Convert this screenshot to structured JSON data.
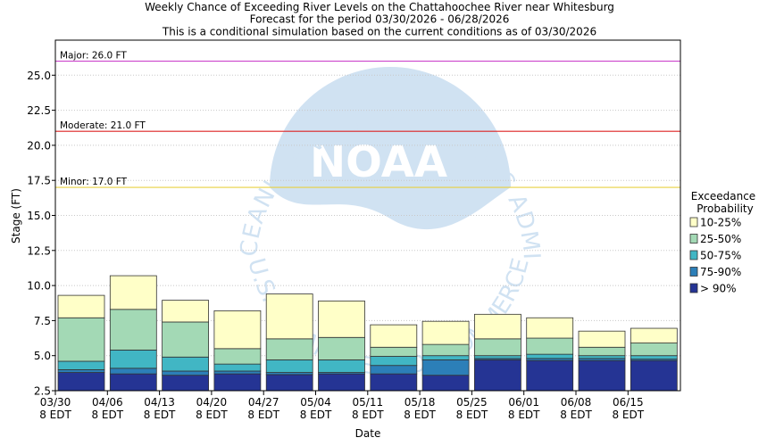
{
  "chart_data": {
    "type": "bar",
    "title_lines": [
      "Weekly Chance of Exceeding River Levels on the Chattahoochee River near Whitesburg",
      "Forecast for the period 03/30/2026 - 06/28/2026",
      "This is a conditional simulation based on the current conditions as of 03/30/2026"
    ],
    "xlabel": "Date",
    "ylabel": "Stage (FT)",
    "ylim": [
      2.5,
      27.5
    ],
    "yticks": [
      "2.5",
      "5.0",
      "7.5",
      "10.0",
      "12.5",
      "15.0",
      "17.5",
      "20.0",
      "22.5",
      "25.0"
    ],
    "xticks": [
      {
        "date": "03/30",
        "tz": "8 EDT"
      },
      {
        "date": "04/06",
        "tz": "8 EDT"
      },
      {
        "date": "04/13",
        "tz": "8 EDT"
      },
      {
        "date": "04/20",
        "tz": "8 EDT"
      },
      {
        "date": "04/27",
        "tz": "8 EDT"
      },
      {
        "date": "05/04",
        "tz": "8 EDT"
      },
      {
        "date": "05/11",
        "tz": "8 EDT"
      },
      {
        "date": "05/18",
        "tz": "8 EDT"
      },
      {
        "date": "05/25",
        "tz": "8 EDT"
      },
      {
        "date": "06/01",
        "tz": "8 EDT"
      },
      {
        "date": "06/08",
        "tz": "8 EDT"
      },
      {
        "date": "06/15",
        "tz": "8 EDT"
      }
    ],
    "thresholds": [
      {
        "label": "Major: 26.0 FT",
        "value": 26.0,
        "color": "#cc44cc"
      },
      {
        "label": "Moderate: 21.0 FT",
        "value": 21.0,
        "color": "#dd2222"
      },
      {
        "label": "Minor: 17.0 FT",
        "value": 17.0,
        "color": "#e8d040"
      }
    ],
    "legend_title_lines": [
      "Exceedance",
      "Probability"
    ],
    "legend_position": "right",
    "bands": [
      {
        "name": "10-25%",
        "color": "#ffffc8"
      },
      {
        "name": "25-50%",
        "color": "#a3d9b5"
      },
      {
        "name": "50-75%",
        "color": "#41b6c4"
      },
      {
        "name": "75-90%",
        "color": "#2c7fb8"
      },
      {
        "name": "> 90%",
        "color": "#253494"
      }
    ],
    "weeks": [
      {
        "min": 2.5,
        "levels": [
          3.8,
          4.0,
          4.6,
          7.7,
          9.3
        ]
      },
      {
        "min": 2.5,
        "levels": [
          3.7,
          4.1,
          5.4,
          8.3,
          10.7
        ]
      },
      {
        "min": 2.5,
        "levels": [
          3.6,
          3.9,
          4.9,
          7.4,
          8.95
        ]
      },
      {
        "min": 2.5,
        "levels": [
          3.7,
          3.9,
          4.4,
          5.5,
          8.2
        ]
      },
      {
        "min": 2.5,
        "levels": [
          3.65,
          3.8,
          4.7,
          6.2,
          9.4
        ]
      },
      {
        "min": 2.5,
        "levels": [
          3.7,
          3.8,
          4.7,
          6.3,
          8.9
        ]
      },
      {
        "min": 2.5,
        "levels": [
          3.7,
          4.3,
          4.95,
          5.6,
          7.2
        ]
      },
      {
        "min": 2.5,
        "levels": [
          3.6,
          4.7,
          5.0,
          5.8,
          7.45
        ]
      },
      {
        "min": 2.5,
        "levels": [
          4.7,
          4.8,
          5.0,
          6.2,
          7.95
        ]
      },
      {
        "min": 2.5,
        "levels": [
          4.65,
          4.8,
          5.1,
          6.25,
          7.7
        ]
      },
      {
        "min": 2.5,
        "levels": [
          4.65,
          4.8,
          5.0,
          5.6,
          6.75
        ]
      },
      {
        "min": 2.5,
        "levels": [
          4.65,
          4.75,
          5.0,
          5.9,
          6.95
        ]
      }
    ],
    "grid": "horizontal",
    "watermark": {
      "arc_text": "NATIONAL OCEANIC AND ATMOSPHERIC ADMINISTRATION",
      "logo_text": "NOAA",
      "bottom_text": "U.S. DEPARTMENT OF COMMERCE"
    }
  }
}
